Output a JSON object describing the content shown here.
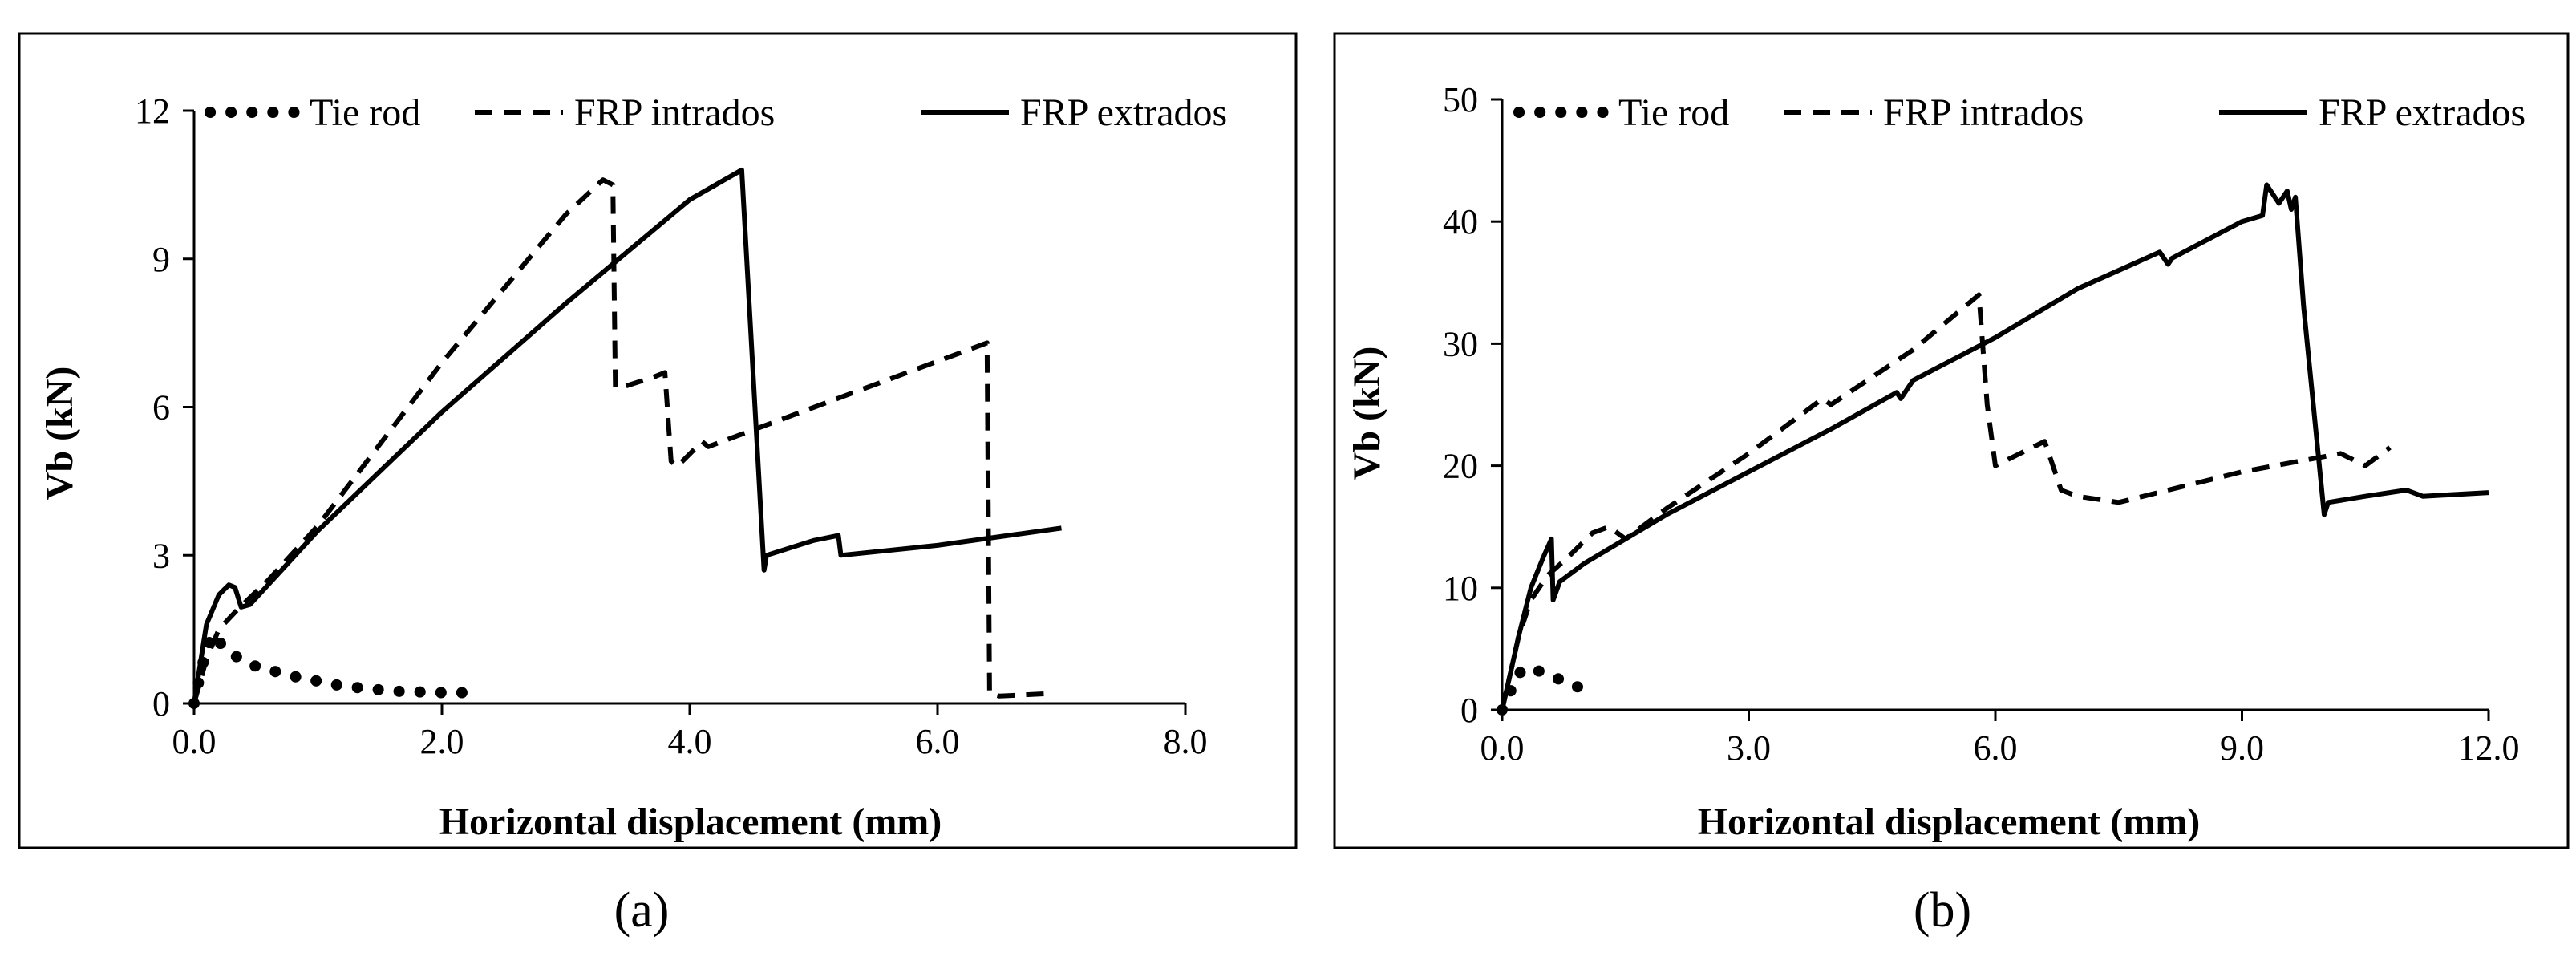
{
  "chart_data": [
    {
      "type": "line",
      "caption": "(a)",
      "xlabel": "Horizontal displacement (mm)",
      "ylabel": "Vb (kN)",
      "xlim": [
        0,
        8
      ],
      "ylim": [
        0,
        12
      ],
      "xticks": [
        0,
        2,
        4,
        6,
        8
      ],
      "xtick_labels": [
        "0.0",
        "2.0",
        "4.0",
        "6.0",
        "8.0"
      ],
      "yticks": [
        0,
        3,
        6,
        9,
        12
      ],
      "ytick_labels": [
        "0",
        "3",
        "6",
        "9",
        "12"
      ],
      "legend": {
        "placement": "top",
        "entries": [
          "Tie rod",
          "FRP intrados",
          "FRP extrados"
        ]
      },
      "series": [
        {
          "name": "Tie rod",
          "style": "dotted",
          "x": [
            0,
            0.05,
            0.1,
            0.15,
            0.2,
            0.3,
            0.5,
            0.8,
            1.2,
            1.6,
            2.0,
            2.25
          ],
          "y": [
            0,
            0.6,
            1.1,
            1.4,
            1.25,
            1.0,
            0.75,
            0.55,
            0.35,
            0.25,
            0.22,
            0.22
          ]
        },
        {
          "name": "FRP intrados",
          "style": "dashed",
          "x": [
            0,
            0.1,
            0.2,
            0.35,
            0.6,
            1.0,
            2.0,
            3.0,
            3.3,
            3.38,
            3.4,
            3.45,
            3.7,
            3.8,
            3.85,
            3.9,
            4.1,
            4.15,
            6.4,
            6.42,
            6.5,
            6.9
          ],
          "y": [
            0,
            0.9,
            1.5,
            1.9,
            2.5,
            3.6,
            6.9,
            9.9,
            10.6,
            10.5,
            6.4,
            6.4,
            6.6,
            6.7,
            4.9,
            4.8,
            5.3,
            5.2,
            7.3,
            0.2,
            0.15,
            0.2
          ]
        },
        {
          "name": "FRP extrados",
          "style": "solid",
          "x": [
            0,
            0.05,
            0.1,
            0.2,
            0.28,
            0.33,
            0.38,
            0.45,
            1.0,
            2.0,
            3.0,
            4.0,
            4.42,
            4.6,
            4.62,
            5.0,
            5.2,
            5.22,
            6.0,
            7.0
          ],
          "y": [
            0,
            0.8,
            1.6,
            2.2,
            2.4,
            2.35,
            1.95,
            2.0,
            3.5,
            5.9,
            8.1,
            10.2,
            10.8,
            2.7,
            3.0,
            3.3,
            3.4,
            3.0,
            3.2,
            3.55
          ]
        }
      ]
    },
    {
      "type": "line",
      "caption": "(b)",
      "xlabel": "Horizontal displacement (mm)",
      "ylabel": "Vb (kN)",
      "xlim": [
        0,
        12
      ],
      "ylim": [
        0,
        50
      ],
      "xticks": [
        0,
        3,
        6,
        9,
        12
      ],
      "xtick_labels": [
        "0.0",
        "3.0",
        "6.0",
        "9.0",
        "12.0"
      ],
      "yticks": [
        0,
        10,
        20,
        30,
        40,
        50
      ],
      "ytick_labels": [
        "0",
        "10",
        "20",
        "30",
        "40",
        "50"
      ],
      "legend": {
        "placement": "top",
        "entries": [
          "Tie rod",
          "FRP intrados",
          "FRP extrados"
        ]
      },
      "series": [
        {
          "name": "Tie rod",
          "style": "dotted",
          "x": [
            0,
            0.1,
            0.2,
            0.35,
            0.5,
            0.7,
            0.9,
            1.05
          ],
          "y": [
            0,
            1.5,
            3.0,
            3.5,
            3.0,
            2.5,
            2.0,
            1.0
          ]
        },
        {
          "name": "FRP intrados",
          "style": "dashed",
          "x": [
            0,
            0.1,
            0.2,
            0.35,
            0.55,
            0.8,
            1.1,
            1.3,
            1.5,
            2.0,
            3.0,
            3.9,
            4.0,
            5.0,
            5.8,
            5.9,
            6.0,
            6.6,
            6.8,
            7.0,
            7.5,
            9.0,
            10.2,
            10.5,
            10.8
          ],
          "y": [
            0,
            3.0,
            6.0,
            9.0,
            11.0,
            12.5,
            14.5,
            15.0,
            14.0,
            16.5,
            21.0,
            25.5,
            25.0,
            29.5,
            34.0,
            25.0,
            20.0,
            22.0,
            18.0,
            17.5,
            17.0,
            19.5,
            21.0,
            20.0,
            21.5
          ]
        },
        {
          "name": "FRP extrados",
          "style": "solid",
          "x": [
            0,
            0.1,
            0.2,
            0.35,
            0.5,
            0.6,
            0.62,
            0.7,
            1.0,
            2.0,
            3.0,
            4.0,
            4.8,
            4.85,
            5.0,
            6.0,
            7.0,
            8.0,
            8.1,
            8.15,
            9.0,
            9.25,
            9.3,
            9.45,
            9.55,
            9.6,
            9.65,
            9.75,
            10.0,
            10.05,
            10.5,
            11.0,
            11.2,
            12.0
          ],
          "y": [
            0,
            3.0,
            6.0,
            10.0,
            12.5,
            14.0,
            9.0,
            10.5,
            12.0,
            16.0,
            19.5,
            23.0,
            26.0,
            25.5,
            27.0,
            30.5,
            34.5,
            37.5,
            36.5,
            37.0,
            40.0,
            40.5,
            43.0,
            41.5,
            42.5,
            41.0,
            42.0,
            33.0,
            16.0,
            17.0,
            17.5,
            18.0,
            17.5,
            17.8
          ]
        }
      ]
    }
  ]
}
